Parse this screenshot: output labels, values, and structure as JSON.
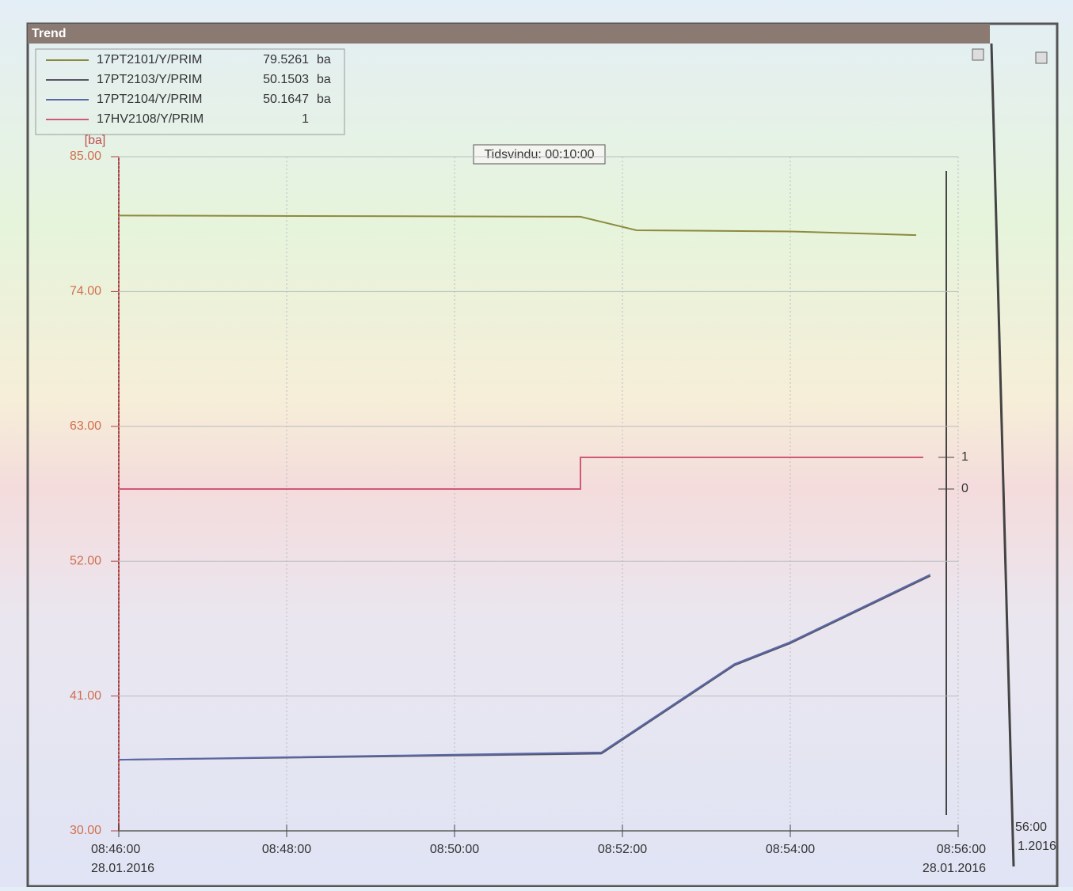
{
  "window_title": "Trend",
  "partial_window": {
    "x_label": "56:00",
    "date_label": "1.2016"
  },
  "chart_data": {
    "type": "line",
    "annotation": "Tidsvindu: 00:10:00",
    "y_label": "[ba]",
    "ylim": [
      30,
      85
    ],
    "yticks": [
      {
        "value": 30,
        "label": "30.00"
      },
      {
        "value": 41,
        "label": "41.00"
      },
      {
        "value": 52,
        "label": "52.00"
      },
      {
        "value": 63,
        "label": "63.00"
      },
      {
        "value": 74,
        "label": "74.00"
      },
      {
        "value": 85,
        "label": "85.00"
      }
    ],
    "y2lim": [
      -10.8,
      10.5
    ],
    "y2ticks": [
      0,
      1
    ],
    "xlim": [
      "08:46:00",
      "08:56:00"
    ],
    "xticks": [
      "08:46:00",
      "08:48:00",
      "08:50:00",
      "08:52:00",
      "08:54:00",
      "08:56:00"
    ],
    "date": "28.01.2016",
    "grid": true,
    "series": [
      {
        "name": "17PT2101/Y/PRIM",
        "current_value": 79.5261,
        "unit": "ba",
        "color": "#8c8a3c",
        "x": [
          "08:46:00",
          "08:51:30",
          "08:52:10",
          "08:54:00",
          "08:55:30"
        ],
        "values": [
          80.2,
          80.1,
          79.0,
          78.9,
          78.6
        ]
      },
      {
        "name": "17PT2103/Y/PRIM",
        "current_value": 50.1503,
        "unit": "ba",
        "color": "#555566",
        "x": [
          "08:46:00",
          "08:51:45",
          "08:53:20",
          "08:54:00",
          "08:55:40"
        ],
        "values": [
          35.8,
          36.3,
          43.5,
          45.3,
          50.8
        ]
      },
      {
        "name": "17PT2104/Y/PRIM",
        "current_value": 50.1647,
        "unit": "ba",
        "color": "#5a68a8",
        "x": [
          "08:46:00",
          "08:51:45",
          "08:53:20",
          "08:54:00",
          "08:55:40"
        ],
        "values": [
          35.8,
          36.4,
          43.6,
          45.4,
          50.9
        ]
      },
      {
        "name": "17HV2108/Y/PRIM",
        "current_value": 1,
        "color": "#d05878",
        "axis": "y2",
        "x": [
          "08:46:00",
          "08:51:30",
          "08:51:30",
          "08:55:35"
        ],
        "values": [
          0,
          0,
          1,
          1
        ]
      }
    ]
  }
}
